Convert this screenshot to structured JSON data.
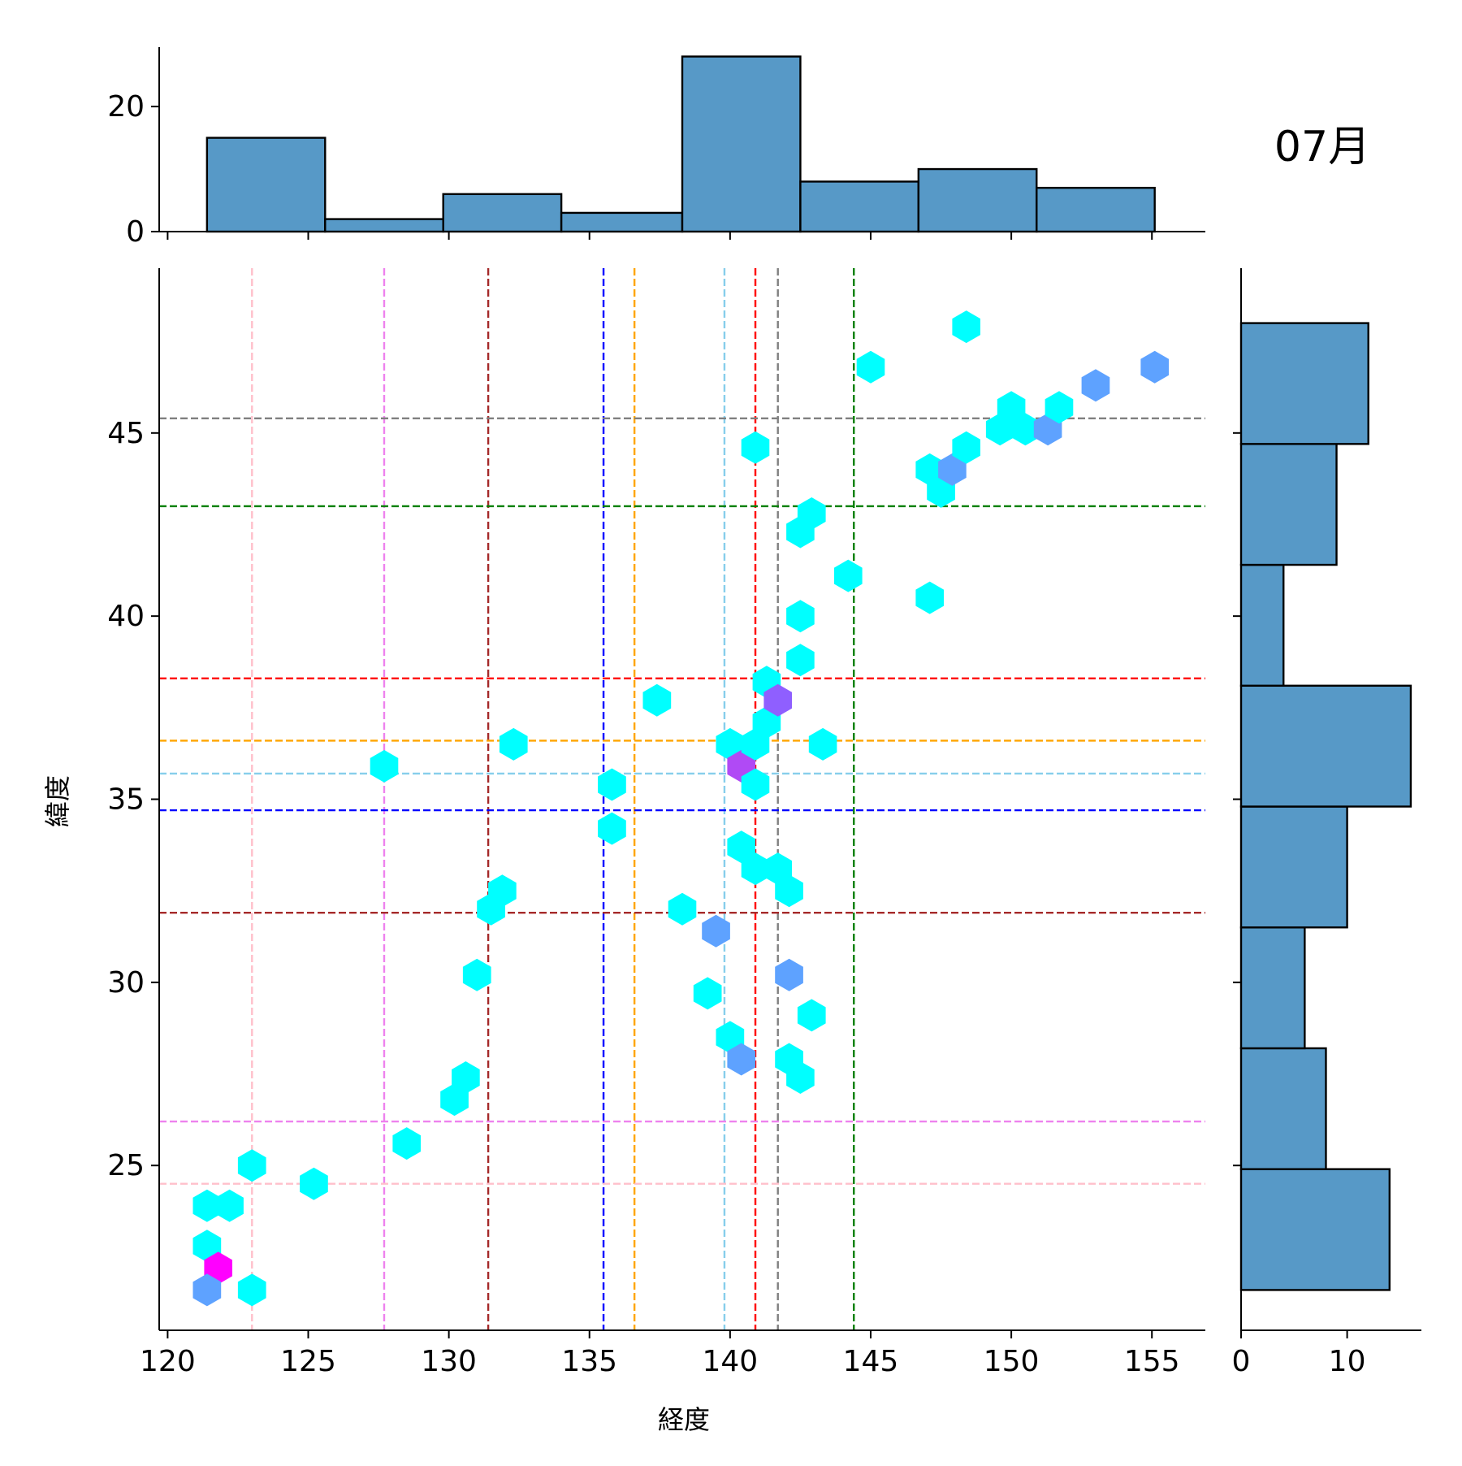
{
  "figure_label": "07月",
  "chart_data": {
    "type": "scatter",
    "subtype": "hexbin-joint",
    "xlabel": "経度",
    "ylabel": "緯度",
    "xlim": [
      119.7,
      156.9
    ],
    "ylim": [
      20.5,
      49.5
    ],
    "xticks": [
      120,
      125,
      130,
      135,
      140,
      145,
      150,
      155
    ],
    "yticks": [
      25,
      30,
      35,
      40,
      45
    ],
    "hex_colors": {
      "1": "#00ffff",
      "2": "#5ea2ff",
      "3": "#8f5fff",
      "4": "#b04af5",
      "5": "#ff00ff"
    },
    "hexbins": [
      {
        "x": 121.4,
        "y": 23.9,
        "count": 1
      },
      {
        "x": 122.2,
        "y": 23.9,
        "count": 1
      },
      {
        "x": 121.4,
        "y": 22.8,
        "count": 1
      },
      {
        "x": 121.8,
        "y": 22.2,
        "count": 5
      },
      {
        "x": 121.4,
        "y": 21.6,
        "count": 2
      },
      {
        "x": 123.0,
        "y": 21.6,
        "count": 1
      },
      {
        "x": 123.0,
        "y": 25.0,
        "count": 1
      },
      {
        "x": 125.2,
        "y": 24.5,
        "count": 1
      },
      {
        "x": 128.5,
        "y": 25.6,
        "count": 1
      },
      {
        "x": 130.2,
        "y": 26.8,
        "count": 1
      },
      {
        "x": 130.6,
        "y": 27.4,
        "count": 1
      },
      {
        "x": 131.0,
        "y": 30.2,
        "count": 1
      },
      {
        "x": 131.5,
        "y": 32.0,
        "count": 1
      },
      {
        "x": 131.9,
        "y": 32.5,
        "count": 1
      },
      {
        "x": 132.3,
        "y": 36.5,
        "count": 1
      },
      {
        "x": 127.7,
        "y": 35.9,
        "count": 1
      },
      {
        "x": 135.8,
        "y": 35.4,
        "count": 1
      },
      {
        "x": 135.8,
        "y": 34.2,
        "count": 1
      },
      {
        "x": 137.4,
        "y": 37.7,
        "count": 1
      },
      {
        "x": 138.3,
        "y": 32.0,
        "count": 1
      },
      {
        "x": 139.5,
        "y": 31.4,
        "count": 2
      },
      {
        "x": 139.2,
        "y": 29.7,
        "count": 1
      },
      {
        "x": 140.0,
        "y": 28.5,
        "count": 1
      },
      {
        "x": 140.4,
        "y": 27.9,
        "count": 2
      },
      {
        "x": 140.0,
        "y": 36.5,
        "count": 1
      },
      {
        "x": 140.4,
        "y": 35.9,
        "count": 4
      },
      {
        "x": 140.9,
        "y": 36.5,
        "count": 1
      },
      {
        "x": 140.9,
        "y": 35.4,
        "count": 1
      },
      {
        "x": 141.3,
        "y": 37.1,
        "count": 1
      },
      {
        "x": 141.3,
        "y": 38.2,
        "count": 1
      },
      {
        "x": 141.7,
        "y": 37.7,
        "count": 3
      },
      {
        "x": 140.4,
        "y": 33.7,
        "count": 1
      },
      {
        "x": 140.9,
        "y": 33.1,
        "count": 1
      },
      {
        "x": 141.7,
        "y": 33.1,
        "count": 1
      },
      {
        "x": 142.1,
        "y": 32.5,
        "count": 1
      },
      {
        "x": 142.1,
        "y": 30.2,
        "count": 2
      },
      {
        "x": 142.9,
        "y": 29.1,
        "count": 1
      },
      {
        "x": 142.1,
        "y": 27.9,
        "count": 1
      },
      {
        "x": 142.5,
        "y": 27.4,
        "count": 1
      },
      {
        "x": 140.9,
        "y": 44.6,
        "count": 1
      },
      {
        "x": 142.5,
        "y": 42.3,
        "count": 1
      },
      {
        "x": 142.9,
        "y": 42.8,
        "count": 1
      },
      {
        "x": 142.5,
        "y": 40.0,
        "count": 1
      },
      {
        "x": 142.5,
        "y": 38.8,
        "count": 1
      },
      {
        "x": 143.3,
        "y": 36.5,
        "count": 1
      },
      {
        "x": 144.2,
        "y": 41.1,
        "count": 1
      },
      {
        "x": 145.0,
        "y": 46.8,
        "count": 1
      },
      {
        "x": 147.1,
        "y": 40.5,
        "count": 1
      },
      {
        "x": 147.1,
        "y": 44.0,
        "count": 1
      },
      {
        "x": 147.5,
        "y": 43.4,
        "count": 1
      },
      {
        "x": 147.9,
        "y": 44.0,
        "count": 2
      },
      {
        "x": 148.4,
        "y": 44.6,
        "count": 1
      },
      {
        "x": 148.4,
        "y": 47.9,
        "count": 1
      },
      {
        "x": 149.6,
        "y": 45.1,
        "count": 1
      },
      {
        "x": 150.0,
        "y": 45.7,
        "count": 1
      },
      {
        "x": 150.5,
        "y": 45.1,
        "count": 1
      },
      {
        "x": 151.3,
        "y": 45.1,
        "count": 2
      },
      {
        "x": 151.7,
        "y": 45.7,
        "count": 1
      },
      {
        "x": 153.0,
        "y": 46.3,
        "count": 2
      },
      {
        "x": 155.1,
        "y": 46.8,
        "count": 2
      }
    ],
    "vlines": [
      {
        "x": 123.0,
        "color": "#ffc0cb"
      },
      {
        "x": 127.7,
        "color": "#ee82ee"
      },
      {
        "x": 131.4,
        "color": "#a52a2a"
      },
      {
        "x": 135.5,
        "color": "#0000ff"
      },
      {
        "x": 136.6,
        "color": "#ffa500"
      },
      {
        "x": 139.8,
        "color": "#87ceeb"
      },
      {
        "x": 140.9,
        "color": "#ff0000"
      },
      {
        "x": 141.7,
        "color": "#808080"
      },
      {
        "x": 144.4,
        "color": "#008000"
      }
    ],
    "hlines": [
      {
        "y": 45.4,
        "color": "#808080"
      },
      {
        "y": 43.0,
        "color": "#008000"
      },
      {
        "y": 38.3,
        "color": "#ff0000"
      },
      {
        "y": 36.6,
        "color": "#ffa500"
      },
      {
        "y": 35.7,
        "color": "#87ceeb"
      },
      {
        "y": 34.7,
        "color": "#0000ff"
      },
      {
        "y": 31.9,
        "color": "#a52a2a"
      },
      {
        "y": 26.2,
        "color": "#ee82ee"
      },
      {
        "y": 24.5,
        "color": "#ffc0cb"
      }
    ],
    "x_histogram": {
      "edges": [
        121.4,
        125.6,
        129.8,
        134.0,
        138.3,
        142.5,
        146.7,
        150.9,
        155.1
      ],
      "counts": [
        15,
        2,
        6,
        3,
        28,
        8,
        10,
        7
      ],
      "ylim": [
        0,
        29.5
      ],
      "yticks": [
        0,
        20
      ],
      "color": "#5799c7"
    },
    "y_histogram": {
      "edges": [
        21.6,
        24.9,
        28.2,
        31.5,
        34.8,
        38.1,
        41.4,
        44.7,
        48.0
      ],
      "counts": [
        14,
        8,
        6,
        10,
        16,
        4,
        9,
        12
      ],
      "xlim": [
        0,
        17
      ],
      "xticks": [
        0,
        10
      ],
      "color": "#5799c7"
    }
  }
}
